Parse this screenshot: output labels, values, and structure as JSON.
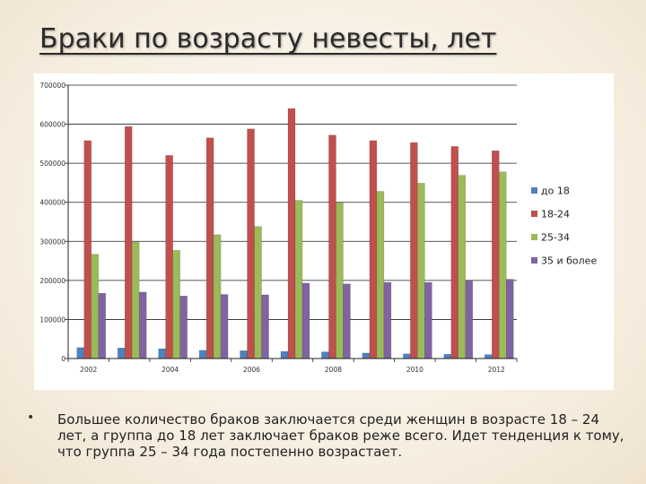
{
  "slide": {
    "title": "Браки по возрасту невесты, лет",
    "bullet_symbol": "•",
    "caption": "Большее количество браков заключается среди женщин в возрасте 18 – 24 лет, а группа до 18 лет заключает браков реже всего. Идет тенденция к тому, что группа 25 – 34 года постепенно возрастает."
  },
  "chart_data": {
    "type": "bar",
    "categories": [
      "2002",
      "2003",
      "2004",
      "2005",
      "2006",
      "2007",
      "2008",
      "2009",
      "2010",
      "2011",
      "2012"
    ],
    "x_tick_labels": [
      "2002",
      "",
      "2004",
      "",
      "2006",
      "",
      "2008",
      "",
      "2010",
      "",
      "2012"
    ],
    "series": [
      {
        "name": "до 18",
        "color": "#4f81bd",
        "values": [
          28000,
          27000,
          25000,
          21000,
          20000,
          18000,
          17000,
          14000,
          12000,
          11000,
          10000
        ]
      },
      {
        "name": "18-24",
        "color": "#c0504d",
        "values": [
          558000,
          594000,
          520000,
          565000,
          588000,
          640000,
          572000,
          558000,
          553000,
          543000,
          532000
        ]
      },
      {
        "name": "25-34",
        "color": "#9bbb59",
        "values": [
          267000,
          298000,
          277000,
          317000,
          338000,
          405000,
          399000,
          428000,
          449000,
          469000,
          478000
        ]
      },
      {
        "name": "35 и более",
        "color": "#8064a2",
        "values": [
          167000,
          170000,
          160000,
          164000,
          163000,
          193000,
          191000,
          195000,
          195000,
          199000,
          203000
        ]
      }
    ],
    "ylim": [
      0,
      700000
    ],
    "y_ticks": [
      "0",
      "100000",
      "200000",
      "300000",
      "400000",
      "500000",
      "600000",
      "700000"
    ],
    "grid": true,
    "legend_position": "right"
  }
}
